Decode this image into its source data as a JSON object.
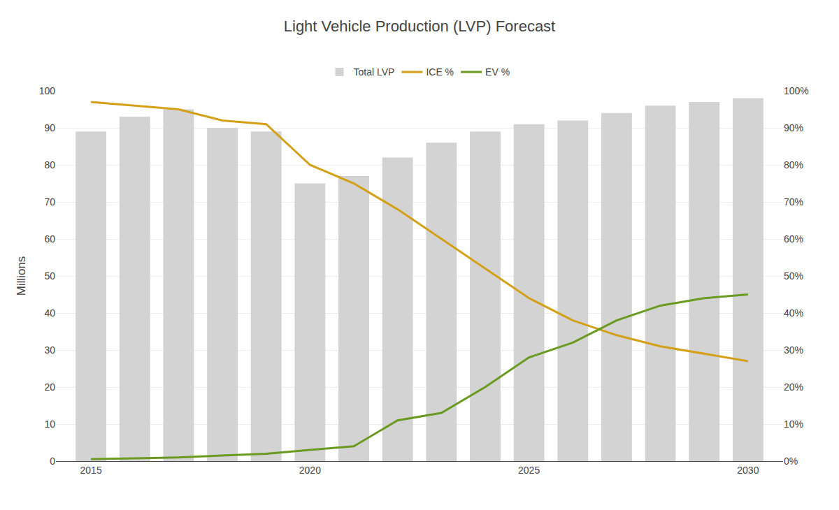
{
  "chart_data": {
    "type": "bar",
    "title": "Light Vehicle Production (LVP) Forecast",
    "x": [
      2015,
      2016,
      2017,
      2018,
      2019,
      2020,
      2021,
      2022,
      2023,
      2024,
      2025,
      2026,
      2027,
      2028,
      2029,
      2030
    ],
    "xlim": [
      2014.2,
      2030.8
    ],
    "xticks": [
      2015,
      2020,
      2025,
      2030
    ],
    "ylabel": "Millions",
    "ylim": [
      0,
      100
    ],
    "yticks": [
      0,
      10,
      20,
      30,
      40,
      50,
      60,
      70,
      80,
      90,
      100
    ],
    "y2lim": [
      0,
      100
    ],
    "y2ticks": [
      {
        "value": 0,
        "label": "0%"
      },
      {
        "value": 10,
        "label": "10%"
      },
      {
        "value": 20,
        "label": "20%"
      },
      {
        "value": 30,
        "label": "30%"
      },
      {
        "value": 40,
        "label": "40%"
      },
      {
        "value": 50,
        "label": "50%"
      },
      {
        "value": 60,
        "label": "60%"
      },
      {
        "value": 70,
        "label": "70%"
      },
      {
        "value": 80,
        "label": "80%"
      },
      {
        "value": 90,
        "label": "90%"
      },
      {
        "value": 100,
        "label": "100%"
      }
    ],
    "grid": true,
    "legend": "top",
    "series": [
      {
        "name": "Total LVP",
        "type": "bar",
        "color": "#d3d3d3",
        "values": [
          89,
          93,
          95,
          90,
          89,
          75,
          77,
          82,
          86,
          89,
          91,
          92,
          94,
          96,
          97,
          98
        ]
      },
      {
        "name": "ICE %",
        "type": "line",
        "color": "#d4a017",
        "axis": "y2",
        "values": [
          97,
          96,
          95,
          92,
          91,
          80,
          75,
          68,
          60,
          52,
          44,
          38,
          34,
          31,
          29,
          27
        ]
      },
      {
        "name": "EV %",
        "type": "line",
        "color": "#6a9a1f",
        "axis": "y2",
        "values": [
          0.5,
          0.8,
          1.0,
          1.5,
          2.0,
          3.0,
          4.0,
          11,
          13,
          20,
          28,
          32,
          38,
          42,
          44,
          45
        ]
      }
    ]
  }
}
